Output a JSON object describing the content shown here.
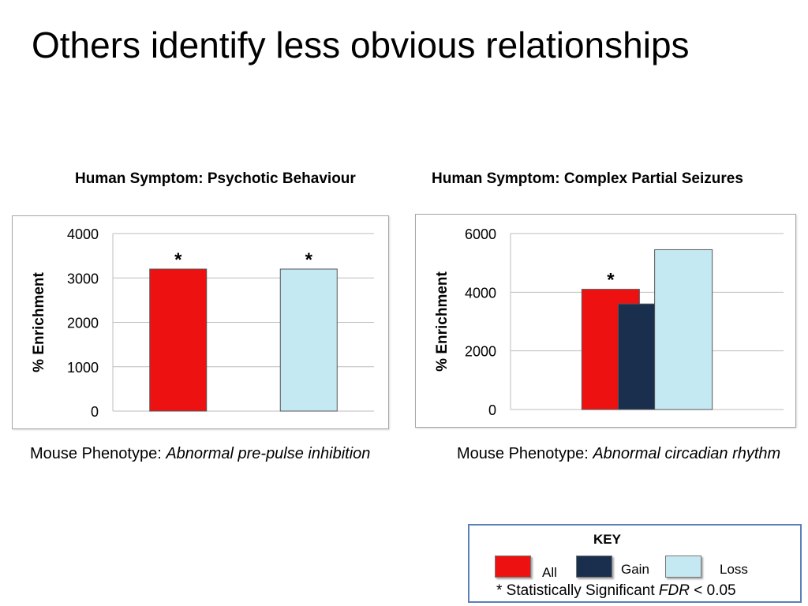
{
  "slide": {
    "title": "Others identify less obvious relationships"
  },
  "charts": [
    {
      "panel_title": "Human Symptom: Psychotic Behaviour",
      "caption_prefix": "Mouse Phenotype: ",
      "caption_italic": "Abnormal pre-pulse inhibition"
    },
    {
      "panel_title": "Human Symptom: Complex Partial Seizures",
      "caption_prefix": "Mouse Phenotype: ",
      "caption_italic": "Abnormal circadian rhythm"
    }
  ],
  "chart_data": [
    {
      "type": "bar",
      "title": "Human Symptom: Psychotic Behaviour",
      "ylabel": "% Enrichment",
      "xlabel": "",
      "ylim": [
        0,
        4000
      ],
      "yticks": [
        0,
        1000,
        2000,
        3000,
        4000
      ],
      "grid": true,
      "categories": [
        "All",
        "Loss"
      ],
      "values": [
        3200,
        3200
      ],
      "significant": [
        "*",
        "*"
      ],
      "colors": [
        "#ee1111",
        "#c5e9f3"
      ]
    },
    {
      "type": "bar",
      "title": "Human Symptom: Complex Partial Seizures",
      "ylabel": "% Enrichment",
      "xlabel": "",
      "ylim": [
        0,
        6000
      ],
      "yticks": [
        0,
        2000,
        4000,
        6000
      ],
      "grid": true,
      "categories": [
        "All",
        "Gain",
        "Loss"
      ],
      "values": [
        4100,
        3600,
        5450
      ],
      "significant": [
        "*",
        "",
        ""
      ],
      "colors": [
        "#ee1111",
        "#1a2e4d",
        "#c5e9f3"
      ]
    }
  ],
  "key": {
    "title": "KEY",
    "items": [
      {
        "label": "All",
        "color": "#ee1111"
      },
      {
        "label": "Gain",
        "color": "#1a2e4d"
      },
      {
        "label": "Loss",
        "color": "#c5e9f3"
      }
    ],
    "note_prefix": "* Statistically Significant ",
    "note_italic": "FDR",
    "note_suffix": " < 0.05"
  }
}
